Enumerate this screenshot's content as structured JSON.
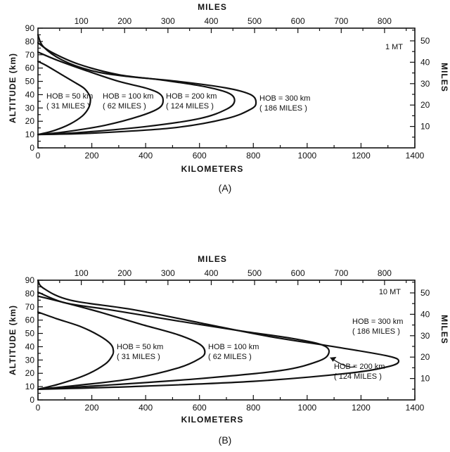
{
  "chart_data": [
    {
      "type": "line",
      "panel_label": "(A)",
      "yield_label": "1 MT",
      "xlabel": "KILOMETERS",
      "x2label": "MILES",
      "ylabel": "ALTITUDE (km)",
      "y2label": "MILES",
      "xlim": [
        0,
        1400
      ],
      "ylim": [
        0,
        90
      ],
      "x_ticks": [
        "0",
        "200",
        "400",
        "600",
        "800",
        "1000",
        "1200",
        "1400"
      ],
      "y_ticks": [
        "0",
        "10",
        "20",
        "30",
        "40",
        "50",
        "60",
        "70",
        "80",
        "90"
      ],
      "x2_ticks": [
        "100",
        "200",
        "300",
        "400",
        "500",
        "600",
        "700",
        "800"
      ],
      "y2_ticks": [
        "10",
        "20",
        "30",
        "40",
        "50"
      ],
      "grid": false,
      "series": [
        {
          "name": "HOB = 50 km (31 MILES)",
          "label_lines": [
            "HOB = 50 km",
            "( 31 MILES )"
          ],
          "points": [
            [
              0,
              10
            ],
            [
              60,
              13
            ],
            [
              120,
              18
            ],
            [
              165,
              24
            ],
            [
              188,
              30
            ],
            [
              195,
              36
            ],
            [
              190,
              40
            ],
            [
              170,
              45
            ],
            [
              130,
              50
            ],
            [
              80,
              56
            ],
            [
              30,
              62
            ],
            [
              0,
              65
            ]
          ]
        },
        {
          "name": "HOB = 100 km (62 MILES)",
          "label_lines": [
            "HOB = 100 km",
            "( 62 MILES )"
          ],
          "points": [
            [
              0,
              10
            ],
            [
              100,
              12
            ],
            [
              250,
              17
            ],
            [
              380,
              24
            ],
            [
              450,
              30
            ],
            [
              465,
              36
            ],
            [
              450,
              41
            ],
            [
              400,
              45
            ],
            [
              300,
              50
            ],
            [
              180,
              58
            ],
            [
              70,
              66
            ],
            [
              0,
              72
            ]
          ]
        },
        {
          "name": "HOB = 200 km (124 MILES)",
          "label_lines": [
            "HOB = 200 km",
            "( 124 MILES )"
          ],
          "points": [
            [
              0,
              10
            ],
            [
              150,
              11.5
            ],
            [
              400,
              16
            ],
            [
              600,
              22
            ],
            [
              700,
              29
            ],
            [
              730,
              35
            ],
            [
              710,
              41
            ],
            [
              620,
              46
            ],
            [
              460,
              51
            ],
            [
              300,
              55
            ],
            [
              150,
              63
            ],
            [
              50,
              72
            ],
            [
              0,
              79
            ]
          ]
        },
        {
          "name": "HOB = 300 km (186 MILES)",
          "label_lines": [
            "HOB = 300 km",
            "( 186 MILES )"
          ],
          "points": [
            [
              0,
              10
            ],
            [
              200,
              11
            ],
            [
              500,
              15
            ],
            [
              700,
              22
            ],
            [
              790,
              29
            ],
            [
              810,
              34
            ],
            [
              790,
              40
            ],
            [
              700,
              45
            ],
            [
              520,
              50
            ],
            [
              320,
              54
            ],
            [
              200,
              58
            ],
            [
              90,
              66
            ],
            [
              20,
              76
            ],
            [
              0,
              85
            ]
          ]
        }
      ]
    },
    {
      "type": "line",
      "panel_label": "(B)",
      "yield_label": "10 MT",
      "xlabel": "KILOMETERS",
      "x2label": "MILES",
      "ylabel": "ALTITUDE (km)",
      "y2label": "MILES",
      "xlim": [
        0,
        1400
      ],
      "ylim": [
        0,
        90
      ],
      "x_ticks": [
        "0",
        "200",
        "400",
        "600",
        "800",
        "1000",
        "1200",
        "1400"
      ],
      "y_ticks": [
        "0",
        "10",
        "20",
        "30",
        "40",
        "50",
        "60",
        "70",
        "80",
        "90"
      ],
      "x2_ticks": [
        "100",
        "200",
        "300",
        "400",
        "500",
        "600",
        "700",
        "800"
      ],
      "y2_ticks": [
        "10",
        "20",
        "30",
        "40",
        "50"
      ],
      "grid": false,
      "series": [
        {
          "name": "HOB = 50 km (31 MILES)",
          "label_lines": [
            "HOB = 50 km",
            "( 31 MILES )"
          ],
          "points": [
            [
              0,
              8
            ],
            [
              80,
              12
            ],
            [
              180,
              19
            ],
            [
              250,
              27
            ],
            [
              275,
              33
            ],
            [
              280,
              37
            ],
            [
              270,
              42
            ],
            [
              230,
              48
            ],
            [
              160,
              55
            ],
            [
              70,
              61
            ],
            [
              0,
              66
            ]
          ]
        },
        {
          "name": "HOB = 100 km (62 MILES)",
          "label_lines": [
            "HOB = 100 km",
            "( 62 MILES )"
          ],
          "points": [
            [
              0,
              8
            ],
            [
              150,
              11
            ],
            [
              350,
              16
            ],
            [
              520,
              24
            ],
            [
              600,
              31
            ],
            [
              620,
              36
            ],
            [
              600,
              42
            ],
            [
              520,
              49
            ],
            [
              380,
              57
            ],
            [
              230,
              66
            ],
            [
              100,
              73
            ],
            [
              0,
              78
            ]
          ]
        },
        {
          "name": "HOB = 200 km (124 MILES)",
          "label_lines": [
            "HOB = 200 km",
            "( 124 MILES )"
          ],
          "points": [
            [
              0,
              8
            ],
            [
              250,
              11
            ],
            [
              600,
              16
            ],
            [
              900,
              22
            ],
            [
              1040,
              29
            ],
            [
              1080,
              35
            ],
            [
              1060,
              41
            ],
            [
              950,
              46
            ],
            [
              750,
              52
            ],
            [
              500,
              60
            ],
            [
              260,
              68
            ],
            [
              100,
              73
            ],
            [
              0,
              81
            ]
          ]
        },
        {
          "name": "HOB = 300 km (186 MILES)",
          "label_lines": [
            "HOB = 300 km",
            "( 186 MILES )"
          ],
          "points": [
            [
              0,
              8
            ],
            [
              350,
              10
            ],
            [
              800,
              14
            ],
            [
              1150,
              20
            ],
            [
              1300,
              25
            ],
            [
              1340,
              29
            ],
            [
              1300,
              33
            ],
            [
              1100,
              40
            ],
            [
              850,
              48
            ],
            [
              600,
              58
            ],
            [
              350,
              68
            ],
            [
              120,
              75
            ],
            [
              20,
              84
            ],
            [
              0,
              90
            ]
          ]
        }
      ]
    }
  ]
}
